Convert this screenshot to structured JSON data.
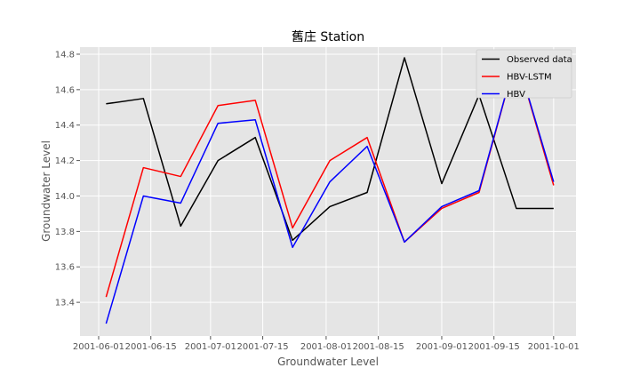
{
  "chart_data": {
    "type": "line",
    "title": "舊庄 Station",
    "xlabel": "Groundwater Level",
    "ylabel": "Groundwater Level",
    "x_dates": [
      "2001-06-03",
      "2001-06-13",
      "2001-06-23",
      "2001-07-03",
      "2001-07-13",
      "2001-07-23",
      "2001-08-02",
      "2001-08-12",
      "2001-08-22",
      "2001-09-01",
      "2001-09-11",
      "2001-09-21",
      "2001-10-01"
    ],
    "x_ticks": [
      "2001-06-01",
      "2001-06-15",
      "2001-07-01",
      "2001-07-15",
      "2001-08-01",
      "2001-08-15",
      "2001-09-01",
      "2001-09-15",
      "2001-10-01"
    ],
    "y_ticks": [
      13.4,
      13.6,
      13.8,
      14.0,
      14.2,
      14.4,
      14.6,
      14.8
    ],
    "ylim": [
      13.21,
      14.84
    ],
    "xlim": [
      "2001-05-27",
      "2001-10-07"
    ],
    "grid": true,
    "legend_position": "top-right",
    "series": [
      {
        "name": "Observed data",
        "color": "#000000",
        "values": [
          14.52,
          14.55,
          13.83,
          14.2,
          14.33,
          13.75,
          13.94,
          14.02,
          14.78,
          14.07,
          14.57,
          13.93,
          13.93
        ]
      },
      {
        "name": "HBV-LSTM",
        "color": "#ff0000",
        "values": [
          13.43,
          14.16,
          14.11,
          14.51,
          14.54,
          13.82,
          14.2,
          14.33,
          13.74,
          13.93,
          14.02,
          14.79,
          14.06
        ]
      },
      {
        "name": "HBV",
        "color": "#0000ff",
        "values": [
          13.28,
          14.0,
          13.96,
          14.41,
          14.43,
          13.71,
          14.08,
          14.28,
          13.74,
          13.94,
          14.03,
          14.79,
          14.08
        ]
      }
    ]
  }
}
